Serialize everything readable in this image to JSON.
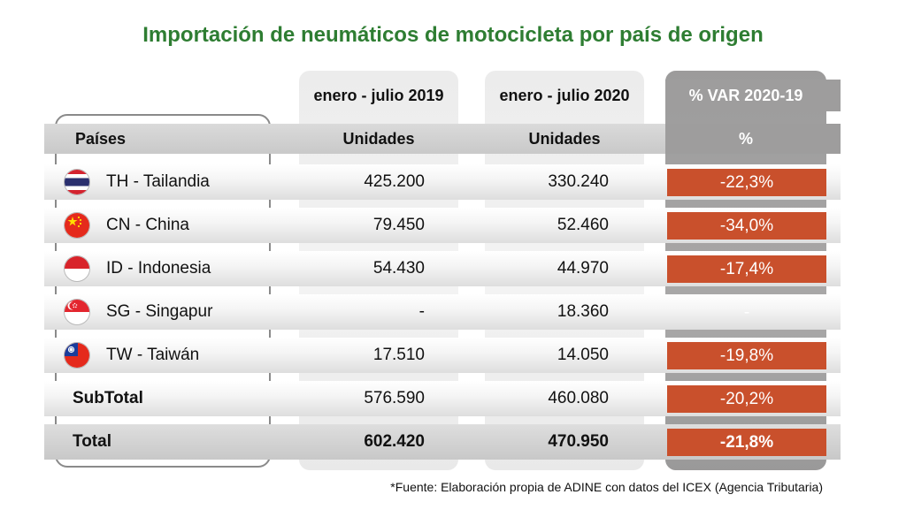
{
  "title": "Importación de neumáticos de motocicleta por país de origen",
  "periods": {
    "p2019": "enero - julio 2019",
    "p2020": "enero - julio 2020",
    "var": "% VAR 2020-19"
  },
  "headers": {
    "country": "Países",
    "units_2019": "Unidades",
    "units_2020": "Unidades",
    "var": "%"
  },
  "rows": [
    {
      "country": "TH - Tailandia",
      "flag": "thailand-flag-icon",
      "v2019": "425.200",
      "v2020": "330.240",
      "var": "-22,3%"
    },
    {
      "country": "CN - China",
      "flag": "china-flag-icon",
      "v2019": "79.450",
      "v2020": "52.460",
      "var": "-34,0%"
    },
    {
      "country": "ID - Indonesia",
      "flag": "indonesia-flag-icon",
      "v2019": "54.430",
      "v2020": "44.970",
      "var": "-17,4%"
    },
    {
      "country": "SG - Singapur",
      "flag": "singapore-flag-icon",
      "v2019": "-",
      "v2020": "18.360",
      "var": "-"
    },
    {
      "country": "TW - Taiwán",
      "flag": "taiwan-flag-icon",
      "v2019": "17.510",
      "v2020": "14.050",
      "var": "-19,8%"
    },
    {
      "country": "SubTotal",
      "v2019": "576.590",
      "v2020": "460.080",
      "var": "-20,2%"
    },
    {
      "country": "Total",
      "v2019": "602.420",
      "v2020": "470.950",
      "var": "-21,8%"
    }
  ],
  "source": "*Fuente: Elaboración propia de ADINE con datos del ICEX (Agencia Tributaria)",
  "colors": {
    "title": "#2e7d32",
    "negative": "#c9502c",
    "var_column": "#a3a2a2"
  },
  "chart_data": {
    "type": "table",
    "title": "Importación de neumáticos de motocicleta por país de origen",
    "columns": [
      "Países",
      "enero - julio 2019 (Unidades)",
      "enero - julio 2020 (Unidades)",
      "% VAR 2020-19 (%)"
    ],
    "rows": [
      [
        "TH - Tailandia",
        425200,
        330240,
        -22.3
      ],
      [
        "CN - China",
        79450,
        52460,
        -34.0
      ],
      [
        "ID - Indonesia",
        54430,
        44970,
        -17.4
      ],
      [
        "SG - Singapur",
        null,
        18360,
        null
      ],
      [
        "TW - Taiwán",
        17510,
        14050,
        -19.8
      ],
      [
        "SubTotal",
        576590,
        460080,
        -20.2
      ],
      [
        "Total",
        602420,
        470950,
        -21.8
      ]
    ]
  }
}
